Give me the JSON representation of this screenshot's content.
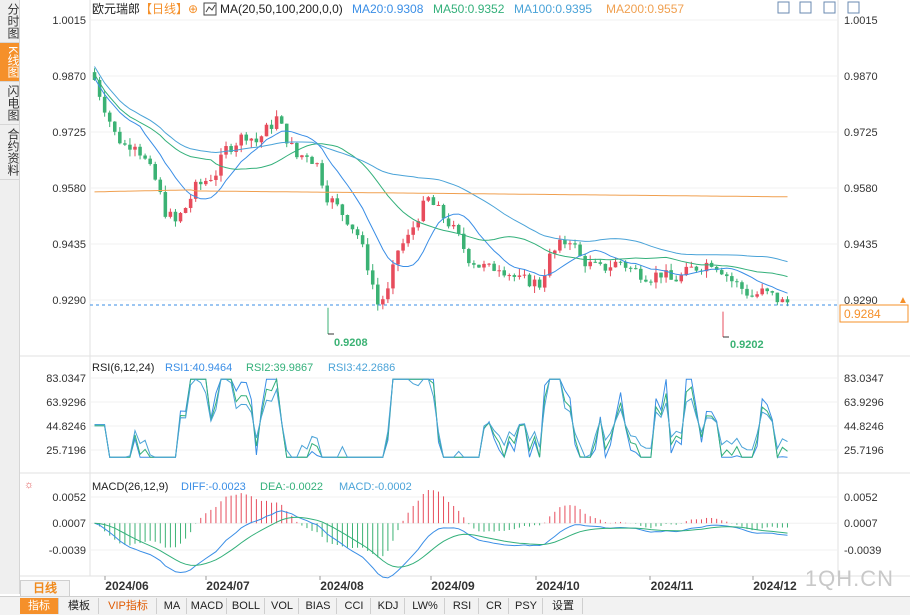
{
  "side_tabs": [
    {
      "label": "分时图",
      "active": false
    },
    {
      "label": "K线图",
      "active": true
    },
    {
      "label": "闪电图",
      "active": false
    },
    {
      "label": "合约资料",
      "active": false
    }
  ],
  "header": {
    "symbol": "欧元瑞郎",
    "timeframe_tag": "【日线】",
    "ma_label": "MA(20,50,100,200,0,0)",
    "ma20": "MA20:0.9308",
    "ma50": "MA50:0.9352",
    "ma100": "MA100:0.9395",
    "ma200": "MA200:0.9557"
  },
  "colors": {
    "up": "#e74c5c",
    "down": "#3bb274",
    "ma20": "#3a8ee6",
    "ma50": "#33b07a",
    "ma100": "#4aa3d8",
    "ma200": "#f0a050",
    "accent": "#f5902a",
    "price_line": "#3a8ee6"
  },
  "price_axis": {
    "ticks": [
      "1.0015",
      "0.9870",
      "0.9725",
      "0.9580",
      "0.9435",
      "0.9290"
    ],
    "current_price": "0.9284",
    "low_label_1": "0.9208",
    "low_label_2": "0.9202"
  },
  "rsi": {
    "title": "RSI(6,12,24)",
    "rsi1": "RSI1:40.9464",
    "rsi2": "RSI2:39.9867",
    "rsi3": "RSI3:42.2686",
    "ticks": [
      "83.0347",
      "63.9296",
      "44.8246",
      "25.7196"
    ]
  },
  "macd": {
    "title": "MACD(26,12,9)",
    "diff": "DIFF:-0.0023",
    "dea": "DEA:-0.0022",
    "macd": "MACD:-0.0002",
    "ticks": [
      "0.0052",
      "0.0007",
      "-0.0039"
    ]
  },
  "x_axis": {
    "timeframe": "日线",
    "labels": [
      "2024/06",
      "2024/07",
      "2024/08",
      "2024/09",
      "2024/10",
      "2024/11",
      "2024/12"
    ]
  },
  "bottom_bar": [
    "指标",
    "模板",
    "VIP指标",
    "MA",
    "MACD",
    "BOLL",
    "VOL",
    "BIAS",
    "CCI",
    "KDJ",
    "LW%",
    "RSI",
    "CR",
    "PSY",
    "设置"
  ],
  "watermark": "1QH.CN",
  "chart_data": {
    "type": "candlestick",
    "title": "欧元瑞郎 日线",
    "ylim": [
      0.9205,
      1.0015
    ],
    "x": [
      "2024/06",
      "2024/07",
      "2024/08",
      "2024/09",
      "2024/10",
      "2024/11",
      "2024/12"
    ],
    "close_path": [
      0.986,
      0.979,
      0.972,
      0.969,
      0.97,
      0.965,
      0.96,
      0.952,
      0.949,
      0.953,
      0.958,
      0.96,
      0.962,
      0.968,
      0.97,
      0.972,
      0.97,
      0.973,
      0.976,
      0.971,
      0.966,
      0.967,
      0.964,
      0.956,
      0.953,
      0.95,
      0.946,
      0.938,
      0.928,
      0.931,
      0.942,
      0.945,
      0.951,
      0.955,
      0.952,
      0.949,
      0.945,
      0.94,
      0.938,
      0.937,
      0.938,
      0.936,
      0.934,
      0.934,
      0.933,
      0.94,
      0.943,
      0.945,
      0.94,
      0.938,
      0.937,
      0.938,
      0.939,
      0.937,
      0.936,
      0.935,
      0.936,
      0.934,
      0.935,
      0.937,
      0.938,
      0.939,
      0.937,
      0.934,
      0.932,
      0.93,
      0.931,
      0.93,
      0.9284
    ],
    "series": [
      {
        "name": "MA20",
        "last": 0.9308
      },
      {
        "name": "MA50",
        "last": 0.9352
      },
      {
        "name": "MA100",
        "last": 0.9395
      },
      {
        "name": "MA200",
        "last": 0.9557
      }
    ],
    "current": 0.9284,
    "marked_lows": [
      0.9208,
      0.9202
    ]
  }
}
